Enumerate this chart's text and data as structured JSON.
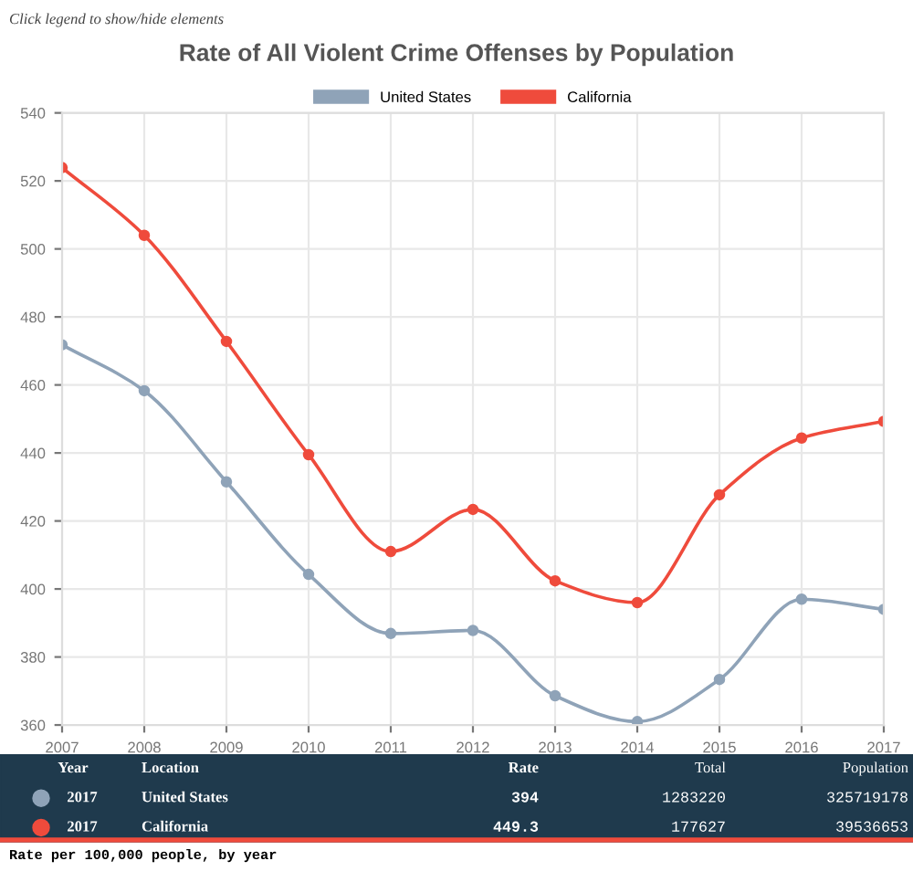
{
  "chart_data": {
    "type": "line",
    "title": "Rate of All Violent Crime Offenses by Population",
    "x": [
      2007,
      2008,
      2009,
      2010,
      2011,
      2012,
      2013,
      2014,
      2015,
      2016,
      2017
    ],
    "series": [
      {
        "name": "United States",
        "color": "#8fa3b8",
        "values": [
          471.8,
          458.3,
          431.5,
          404.3,
          386.9,
          387.8,
          368.6,
          361.0,
          373.4,
          397.0,
          394
        ]
      },
      {
        "name": "California",
        "color": "#ef4b3c",
        "values": [
          523.9,
          504.0,
          472.8,
          439.5,
          411.0,
          423.4,
          402.4,
          396.0,
          427.7,
          444.4,
          449.3
        ]
      }
    ],
    "xlim": [
      2007,
      2017
    ],
    "xticks": [
      2007,
      2008,
      2009,
      2010,
      2011,
      2012,
      2013,
      2014,
      2015,
      2016,
      2017
    ],
    "ylim": [
      360,
      540
    ],
    "yticks": [
      360,
      380,
      400,
      420,
      440,
      460,
      480,
      500,
      520,
      540
    ],
    "grid": true,
    "legend": "top",
    "marker": "circle",
    "line_style": "solid",
    "annotations": [
      "Click legend to show/hide elements",
      "Rate per 100,000 people, by year",
      "Year",
      "Location",
      "Rate",
      "Total",
      "Population",
      "2017",
      "United States",
      "394",
      "1283220",
      "325719178",
      "2017",
      "California",
      "449.3",
      "177627",
      "39536653"
    ]
  }
}
